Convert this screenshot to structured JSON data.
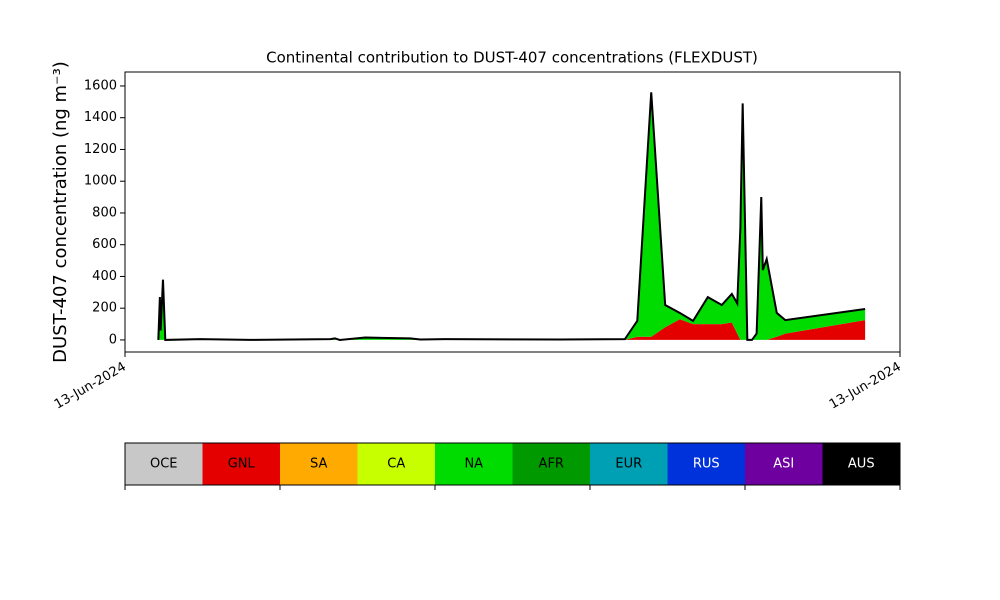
{
  "chart_data": {
    "type": "stacked_area",
    "title": "Continental contribution to DUST-407 concentrations (FLEXDUST)",
    "y_label": "DUST-407 concentration (ng m⁻³)",
    "x": [
      4.3,
      4.5,
      4.6,
      4.9,
      5.2,
      9.7,
      16.1,
      26.5,
      27.1,
      27.7,
      31.0,
      36.8,
      38.1,
      41.3,
      56.1,
      64.5,
      66.1,
      67.9,
      69.7,
      71.6,
      73.3,
      75.2,
      77.0,
      78.3,
      79.0,
      79.4,
      79.7,
      80.3,
      80.9,
      81.5,
      82.1,
      82.3,
      82.8,
      84.1,
      85.2,
      95.5
    ],
    "series": [
      {
        "name": "GNL",
        "color": "#e50000",
        "values": [
          0,
          0,
          0,
          0,
          0,
          0,
          0,
          0,
          0,
          0,
          0,
          0,
          0,
          0,
          0,
          0,
          20,
          20,
          80,
          130,
          100,
          100,
          100,
          110,
          40,
          0,
          0,
          0,
          0,
          0,
          0,
          0,
          0,
          20,
          40,
          125
        ]
      },
      {
        "name": "NA",
        "color": "#00dc00",
        "values": [
          0,
          270,
          60,
          380,
          0,
          5,
          0,
          5,
          10,
          0,
          15,
          10,
          3,
          5,
          3,
          5,
          100,
          1540,
          140,
          40,
          20,
          170,
          120,
          180,
          190,
          700,
          1490,
          0,
          0,
          40,
          900,
          440,
          510,
          150,
          85,
          70
        ]
      }
    ],
    "outline_color": "#000000",
    "xlim": [
      0,
      100
    ],
    "xticks": [
      {
        "value": 0,
        "label": "13-Jun-2024"
      },
      {
        "value": 100,
        "label": "13-Jun-2024"
      }
    ],
    "ylim": [
      -76,
      1688
    ],
    "yticks": [
      0,
      200,
      400,
      600,
      800,
      1000,
      1200,
      1400,
      1600
    ],
    "colorbar": [
      {
        "name": "OCE",
        "color": "#c8c8c8"
      },
      {
        "name": "GNL",
        "color": "#e50000"
      },
      {
        "name": "SA",
        "color": "#ffaa00"
      },
      {
        "name": "CA",
        "color": "#c8ff00"
      },
      {
        "name": "NA",
        "color": "#00dc00"
      },
      {
        "name": "AFR",
        "color": "#009a00"
      },
      {
        "name": "EUR",
        "color": "#00a0b4"
      },
      {
        "name": "RUS",
        "color": "#0032dc"
      },
      {
        "name": "ASI",
        "color": "#6e00a0"
      },
      {
        "name": "AUS",
        "color": "#000000"
      }
    ]
  }
}
